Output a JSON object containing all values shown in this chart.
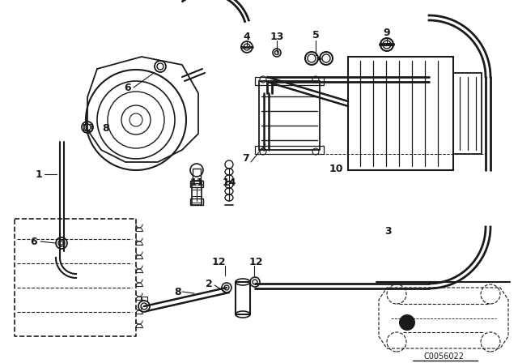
{
  "bg_color": "#ffffff",
  "line_color": "#1a1a1a",
  "diagram_code": "C0056022",
  "fig_w": 6.4,
  "fig_h": 4.48,
  "dpi": 100
}
